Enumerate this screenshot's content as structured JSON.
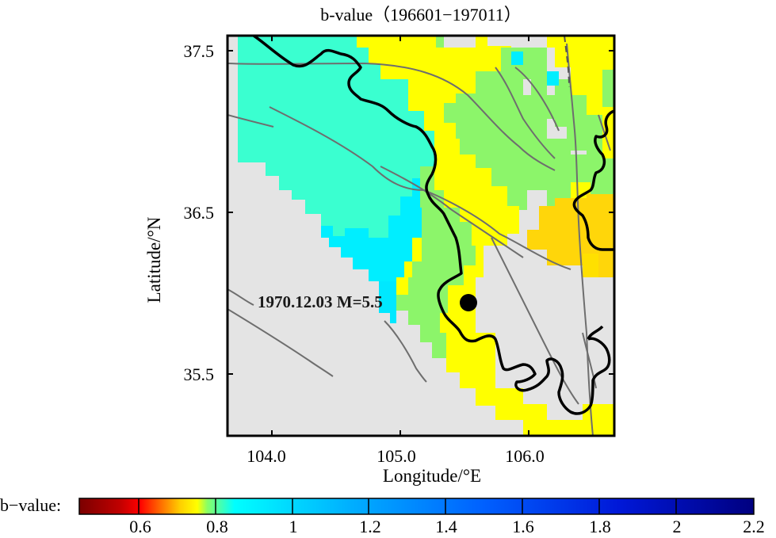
{
  "figure": {
    "title": "b-value（196601−197011）",
    "xlabel": "Longitude/°E",
    "ylabel": "Latitude/°N",
    "xticks": [
      "104.0",
      "105.0",
      "106.0"
    ],
    "yticks": [
      "37.5",
      "36.5",
      "35.5"
    ],
    "event": {
      "label": "1970.12.03 M=5.5",
      "lon": 105.53,
      "lat": 35.95
    }
  },
  "colorbar": {
    "label": "b−value:",
    "range": [
      0.45,
      2.2
    ],
    "ticks": [
      "0.6",
      "0.8",
      "1",
      "1.2",
      "1.4",
      "1.6",
      "1.8",
      "2",
      "2.2"
    ],
    "colors": {
      "low": "#7a0000",
      "red": "#ff0000",
      "orange": "#ff8c00",
      "yellow": "#ffff00",
      "green": "#88ff66",
      "cyan": "#00ffff",
      "blue": "#0050ff",
      "darkblue": "#000080"
    }
  },
  "map_colors": {
    "no_data": "#e4e4e4",
    "cyan_zone": "#3affd0",
    "teal_zone": "#00eeff",
    "green_zone": "#8cf56a",
    "yellow_zone": "#ffff00",
    "orange_zone": "#ffd60a",
    "boundary": "#000000",
    "faults": "#6e6e6e"
  }
}
